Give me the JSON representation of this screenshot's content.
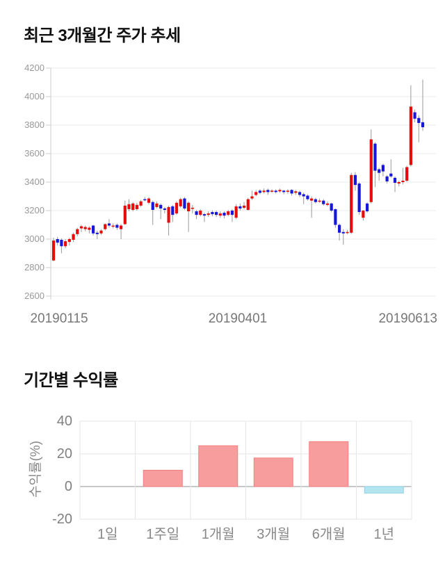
{
  "colors": {
    "candle_up": "#e60c0c",
    "candle_down": "#1717d9",
    "wick": "#999999",
    "grid_light": "#ebebeb",
    "axis_line": "#cccccc",
    "grid_light_2": "#e6e6e6",
    "zero_line": "#a8a8a8",
    "bar_positive_fill": "#f89d9d",
    "bar_positive_border": "#f28080",
    "bar_negative_fill": "#b3e5f0",
    "bar_negative_border": "#8fd2e2"
  },
  "chart_data": [
    {
      "type": "candlestick",
      "title": "최근 3개월간 주가 추세",
      "ylim": [
        2600,
        4200
      ],
      "y_ticks": [
        4200,
        4000,
        3800,
        3600,
        3400,
        3200,
        3000,
        2800,
        2600
      ],
      "x_axis_labels": [
        "20190115",
        "20190401",
        "20190613"
      ],
      "grid": true,
      "candles_ohlc": [
        [
          2850,
          3010,
          2845,
          2990
        ],
        [
          3000,
          3015,
          2955,
          2975
        ],
        [
          2995,
          3005,
          2900,
          2950
        ],
        [
          2950,
          3000,
          2935,
          2985
        ],
        [
          2980,
          3010,
          2955,
          3000
        ],
        [
          2995,
          3045,
          2980,
          3035
        ],
        [
          3035,
          3080,
          3020,
          3070
        ],
        [
          3075,
          3100,
          3050,
          3090
        ],
        [
          3070,
          3095,
          3055,
          3085
        ],
        [
          3065,
          3090,
          3040,
          3080
        ],
        [
          3095,
          3100,
          3025,
          3040
        ],
        [
          3045,
          3060,
          3000,
          3035
        ],
        [
          3040,
          3070,
          3030,
          3060
        ],
        [
          3070,
          3110,
          3060,
          3105
        ],
        [
          3110,
          3140,
          3080,
          3095
        ],
        [
          3090,
          3110,
          3075,
          3095
        ],
        [
          3100,
          3110,
          3065,
          3080
        ],
        [
          3070,
          3105,
          3000,
          3095
        ],
        [
          3105,
          3270,
          3100,
          3235
        ],
        [
          3210,
          3280,
          3195,
          3245
        ],
        [
          3205,
          3260,
          3195,
          3250
        ],
        [
          3210,
          3255,
          3200,
          3240
        ],
        [
          3235,
          3275,
          3225,
          3265
        ],
        [
          3280,
          3295,
          3265,
          3275
        ],
        [
          3255,
          3295,
          3245,
          3285
        ],
        [
          3260,
          3270,
          3100,
          3205
        ],
        [
          3225,
          3265,
          3215,
          3250
        ],
        [
          3240,
          3250,
          3140,
          3215
        ],
        [
          3215,
          3225,
          3180,
          3205
        ],
        [
          3115,
          3235,
          3025,
          3225
        ],
        [
          3230,
          3240,
          3120,
          3170
        ],
        [
          3180,
          3265,
          3170,
          3255
        ],
        [
          3230,
          3290,
          3220,
          3280
        ],
        [
          3285,
          3295,
          3205,
          3215
        ],
        [
          3195,
          3265,
          3050,
          3255
        ],
        [
          3215,
          3240,
          3180,
          3220
        ],
        [
          3195,
          3205,
          3140,
          3170
        ],
        [
          3170,
          3210,
          3160,
          3200
        ],
        [
          3175,
          3185,
          3120,
          3165
        ],
        [
          3170,
          3195,
          3155,
          3180
        ],
        [
          3190,
          3200,
          3160,
          3175
        ],
        [
          3190,
          3200,
          3155,
          3170
        ],
        [
          3165,
          3195,
          3150,
          3180
        ],
        [
          3185,
          3195,
          3145,
          3165
        ],
        [
          3170,
          3205,
          3160,
          3195
        ],
        [
          3200,
          3210,
          3120,
          3170
        ],
        [
          3150,
          3245,
          3140,
          3230
        ],
        [
          3230,
          3250,
          3200,
          3215
        ],
        [
          3220,
          3260,
          3210,
          3235
        ],
        [
          3205,
          3290,
          3200,
          3280
        ],
        [
          3285,
          3340,
          3275,
          3300
        ],
        [
          3310,
          3345,
          3300,
          3330
        ],
        [
          3340,
          3350,
          3315,
          3325
        ],
        [
          3330,
          3355,
          3320,
          3340
        ],
        [
          3345,
          3355,
          3310,
          3330
        ],
        [
          3335,
          3350,
          3325,
          3340
        ],
        [
          3340,
          3350,
          3320,
          3330
        ],
        [
          3335,
          3355,
          3325,
          3345
        ],
        [
          3340,
          3345,
          3315,
          3330
        ],
        [
          3335,
          3350,
          3320,
          3340
        ],
        [
          3345,
          3350,
          3305,
          3320
        ],
        [
          3325,
          3345,
          3310,
          3335
        ],
        [
          3330,
          3340,
          3295,
          3310
        ],
        [
          3315,
          3325,
          3245,
          3300
        ],
        [
          3305,
          3315,
          3270,
          3280
        ],
        [
          3270,
          3300,
          3150,
          3285
        ],
        [
          3280,
          3290,
          3250,
          3260
        ],
        [
          3265,
          3285,
          3255,
          3270
        ],
        [
          3270,
          3280,
          3235,
          3245
        ],
        [
          3240,
          3265,
          3230,
          3250
        ],
        [
          3250,
          3255,
          3190,
          3200
        ],
        [
          3210,
          3215,
          3080,
          3100
        ],
        [
          3100,
          3110,
          2990,
          3045
        ],
        [
          3050,
          3070,
          2960,
          3040
        ],
        [
          3045,
          3065,
          3035,
          3050
        ],
        [
          3045,
          3465,
          3035,
          3450
        ],
        [
          3450,
          3470,
          3340,
          3380
        ],
        [
          3390,
          3400,
          3170,
          3190
        ],
        [
          3150,
          3205,
          3130,
          3200
        ],
        [
          3250,
          3260,
          3185,
          3195
        ],
        [
          3260,
          3770,
          3250,
          3700
        ],
        [
          3670,
          3680,
          3365,
          3480
        ],
        [
          3490,
          3500,
          3410,
          3465
        ],
        [
          3520,
          3530,
          3440,
          3475
        ],
        [
          3440,
          3450,
          3390,
          3405
        ],
        [
          3460,
          3560,
          3430,
          3440
        ],
        [
          3430,
          3440,
          3330,
          3395
        ],
        [
          3390,
          3410,
          3370,
          3400
        ],
        [
          3400,
          3500,
          3385,
          3410
        ],
        [
          3410,
          3515,
          3400,
          3505
        ],
        [
          3520,
          4080,
          3510,
          3930
        ],
        [
          3890,
          3910,
          3820,
          3845
        ],
        [
          3850,
          3870,
          3680,
          3815
        ],
        [
          3820,
          4120,
          3760,
          3785
        ]
      ]
    },
    {
      "type": "bar",
      "title": "기간별 수익률",
      "ylabel": "수익률(%)",
      "categories": [
        "1일",
        "1주일",
        "1개월",
        "3개월",
        "6개월",
        "1년"
      ],
      "values": [
        0,
        10,
        25,
        17.5,
        27.5,
        -4
      ],
      "ylim": [
        -20,
        40
      ],
      "y_ticks": [
        40,
        20,
        0,
        -20
      ],
      "grid": true,
      "legend": "none"
    }
  ]
}
